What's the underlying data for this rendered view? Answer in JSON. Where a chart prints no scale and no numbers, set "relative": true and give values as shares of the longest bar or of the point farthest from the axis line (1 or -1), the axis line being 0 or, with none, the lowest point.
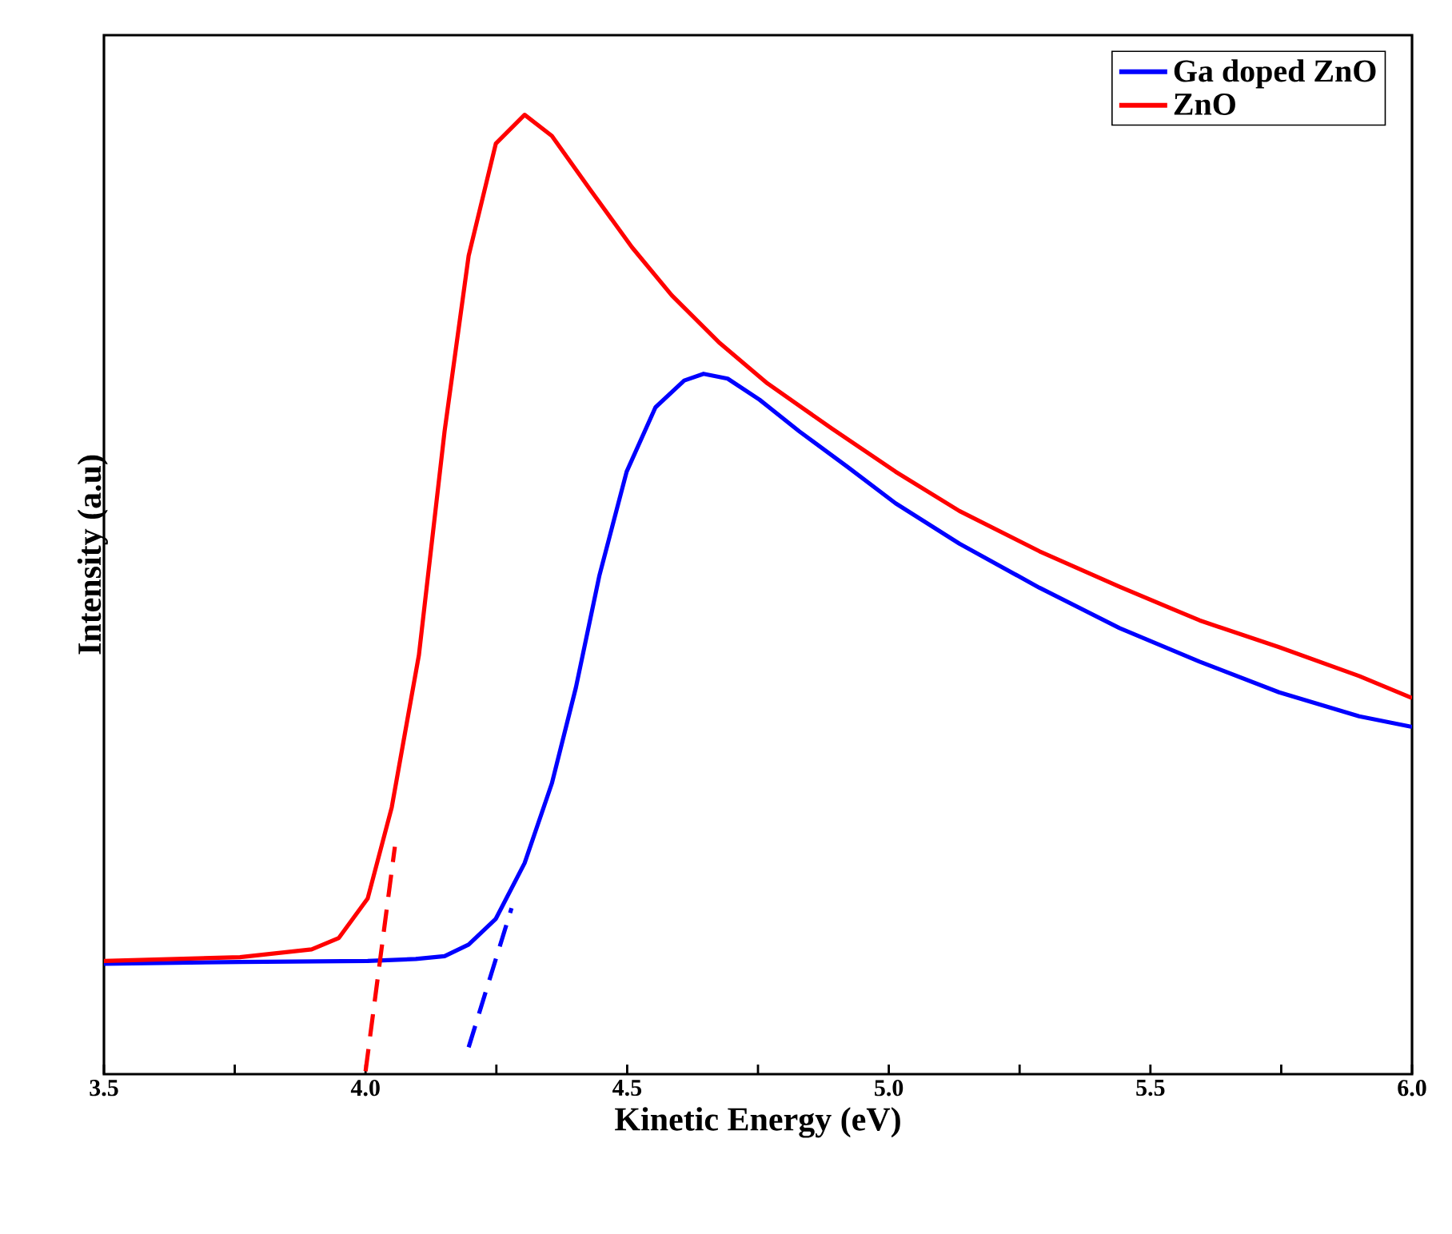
{
  "chart_data": {
    "type": "line",
    "xlabel": "Kinetic Energy (eV)",
    "ylabel": "Intensity (a.u)",
    "relative": true,
    "xlim": [
      3.5,
      6.0
    ],
    "xticks": [
      {
        "value": 3.5,
        "label": "3.5"
      },
      {
        "value": 3.75,
        "label": null
      },
      {
        "value": 4.0,
        "label": "4.0"
      },
      {
        "value": 4.25,
        "label": null
      },
      {
        "value": 4.5,
        "label": "4.5"
      },
      {
        "value": 4.75,
        "label": null
      },
      {
        "value": 5.0,
        "label": "5.0"
      },
      {
        "value": 5.25,
        "label": null
      },
      {
        "value": 5.5,
        "label": "5.5"
      },
      {
        "value": 5.75,
        "label": null
      },
      {
        "value": 6.0,
        "label": "6.0"
      }
    ],
    "legend": "top right",
    "tick_labels": "x",
    "series": [
      {
        "name": "Ga doped ZnO",
        "color": "#0000ff",
        "x": [
          3.5,
          3.76,
          4.004,
          4.096,
          4.151,
          4.197,
          4.249,
          4.304,
          4.356,
          4.402,
          4.447,
          4.499,
          4.554,
          4.609,
          4.646,
          4.692,
          4.753,
          4.829,
          4.921,
          5.013,
          5.135,
          5.288,
          5.441,
          5.594,
          5.746,
          5.899,
          6.0
        ],
        "values": [
          0.115,
          0.117,
          0.118,
          0.12,
          0.123,
          0.135,
          0.162,
          0.22,
          0.303,
          0.403,
          0.52,
          0.628,
          0.695,
          0.723,
          0.73,
          0.725,
          0.703,
          0.67,
          0.633,
          0.595,
          0.553,
          0.507,
          0.465,
          0.43,
          0.398,
          0.373,
          0.362
        ]
      },
      {
        "name": "ZnO",
        "color": "#ff0000",
        "x": [
          3.5,
          3.76,
          3.897,
          3.949,
          4.004,
          4.05,
          4.102,
          4.151,
          4.197,
          4.249,
          4.304,
          4.356,
          4.432,
          4.509,
          4.585,
          4.677,
          4.768,
          4.891,
          5.013,
          5.135,
          5.288,
          5.441,
          5.594,
          5.746,
          5.899,
          6.0
        ],
        "values": [
          0.118,
          0.122,
          0.13,
          0.142,
          0.183,
          0.278,
          0.437,
          0.67,
          0.853,
          0.97,
          1.0,
          0.978,
          0.92,
          0.862,
          0.812,
          0.762,
          0.72,
          0.673,
          0.628,
          0.587,
          0.545,
          0.508,
          0.473,
          0.445,
          0.415,
          0.392
        ]
      },
      {
        "type": "line",
        "line_style": "dashed",
        "color": "#ff0000",
        "x": [
          4.0,
          4.056
        ],
        "values": [
          0.003,
          0.237
        ]
      },
      {
        "type": "line",
        "line_style": "dashed",
        "color": "#0000ff",
        "x": [
          4.197,
          4.279
        ],
        "values": [
          0.028,
          0.173
        ]
      }
    ]
  }
}
